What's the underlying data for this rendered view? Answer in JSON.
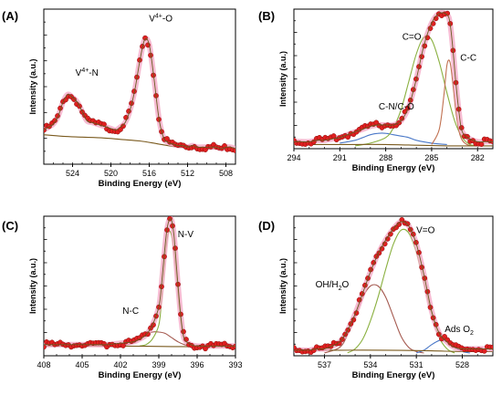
{
  "chart_data": [
    {
      "type": "line",
      "panel_label": "(A)",
      "xlabel": "Binding Energy (eV)",
      "ylabel": "Intensity (a.u.)",
      "xlim": [
        527,
        507
      ],
      "ylim": [
        0,
        1
      ],
      "xticks": [
        524,
        520,
        516,
        512,
        508
      ],
      "annotations": [
        {
          "base": "V",
          "sup": "4+",
          "rest": "-N",
          "x": 522.5,
          "y": 0.57
        },
        {
          "base": "V",
          "sup": "4+",
          "rest": "-O",
          "x": 514.8,
          "y": 0.92
        }
      ],
      "series": [
        {
          "role": "data",
          "color": "#e02020",
          "x": [
            527,
            526.5,
            526,
            525.5,
            525,
            524.5,
            524,
            523.5,
            523,
            522.5,
            522,
            521.5,
            521,
            520.5,
            520,
            519.5,
            519,
            518.5,
            518,
            517.5,
            517,
            516.5,
            516,
            515.5,
            515,
            514.5,
            514,
            513.5,
            513,
            512.5,
            512,
            511.5,
            511,
            510.5,
            510,
            509.5,
            509,
            508.5,
            508,
            507.5,
            507
          ],
          "y": [
            0.22,
            0.24,
            0.26,
            0.31,
            0.4,
            0.45,
            0.43,
            0.4,
            0.34,
            0.28,
            0.27,
            0.26,
            0.25,
            0.24,
            0.23,
            0.22,
            0.24,
            0.27,
            0.35,
            0.48,
            0.66,
            0.8,
            0.77,
            0.55,
            0.3,
            0.17,
            0.14,
            0.13,
            0.12,
            0.12,
            0.11,
            0.12,
            0.11,
            0.11,
            0.11,
            0.11,
            0.11,
            0.1,
            0.11,
            0.11,
            0.1
          ]
        },
        {
          "role": "background",
          "color": "#7a5a1e",
          "x": [
            527,
            525,
            523,
            521,
            519,
            517,
            515,
            513,
            511,
            509,
            507
          ],
          "y": [
            0.19,
            0.18,
            0.175,
            0.17,
            0.16,
            0.15,
            0.13,
            0.11,
            0.105,
            0.1,
            0.1
          ]
        }
      ]
    },
    {
      "type": "line",
      "panel_label": "(B)",
      "xlabel": "Binding Energy (eV)",
      "ylabel": "Intensity (a.u.)",
      "xlim": [
        294,
        281
      ],
      "ylim": [
        0,
        1
      ],
      "xticks": [
        294,
        291,
        288,
        285,
        282
      ],
      "annotations": [
        {
          "base": "C-N/C-O",
          "x": 287.3,
          "y": 0.28
        },
        {
          "base": "C=O",
          "x": 286.3,
          "y": 0.78
        },
        {
          "base": "C-C",
          "x": 282.6,
          "y": 0.63
        }
      ],
      "series": [
        {
          "role": "data",
          "color": "#e02020",
          "x": [
            294,
            293.5,
            293,
            292.5,
            292,
            291.5,
            291,
            290.5,
            290,
            289.5,
            289,
            288.5,
            288,
            287.5,
            287,
            286.5,
            286,
            285.5,
            285,
            284.5,
            284,
            283.8,
            283.6,
            283.4,
            283.2,
            283,
            282.5,
            282,
            281.5,
            281
          ],
          "y": [
            0.05,
            0.05,
            0.05,
            0.06,
            0.06,
            0.07,
            0.08,
            0.1,
            0.12,
            0.14,
            0.16,
            0.17,
            0.17,
            0.17,
            0.2,
            0.3,
            0.5,
            0.74,
            0.9,
            0.97,
            0.96,
            0.9,
            0.7,
            0.45,
            0.25,
            0.12,
            0.07,
            0.05,
            0.05,
            0.05
          ]
        },
        {
          "role": "component",
          "name": "C-N/C-O",
          "color": "#4a78c8",
          "x": [
            291,
            290,
            289.5,
            289,
            288.5,
            288,
            287.5,
            287,
            286.5,
            286,
            285,
            284
          ],
          "y": [
            0.04,
            0.06,
            0.08,
            0.1,
            0.11,
            0.11,
            0.1,
            0.09,
            0.08,
            0.06,
            0.04,
            0.03
          ]
        },
        {
          "role": "component",
          "name": "C=O",
          "color": "#8ab040",
          "x": [
            290,
            289,
            288,
            287.5,
            287,
            286.5,
            286,
            285.5,
            285,
            284.5,
            284,
            283.5,
            283,
            282.5,
            282
          ],
          "y": [
            0.02,
            0.04,
            0.08,
            0.15,
            0.28,
            0.48,
            0.68,
            0.8,
            0.78,
            0.62,
            0.4,
            0.2,
            0.08,
            0.03,
            0.02
          ]
        },
        {
          "role": "component",
          "name": "C-C",
          "color": "#c07050",
          "x": [
            285,
            284.5,
            284.2,
            284,
            283.8,
            283.6,
            283.4,
            283.2,
            283,
            282.7,
            282.4
          ],
          "y": [
            0.03,
            0.14,
            0.38,
            0.6,
            0.62,
            0.45,
            0.25,
            0.12,
            0.06,
            0.03,
            0.02
          ]
        },
        {
          "role": "background",
          "color": "#7a5a1e",
          "x": [
            294,
            292,
            290,
            288,
            286,
            284,
            283,
            281
          ],
          "y": [
            0.03,
            0.03,
            0.03,
            0.03,
            0.025,
            0.02,
            0.02,
            0.02
          ]
        }
      ]
    },
    {
      "type": "line",
      "panel_label": "(C)",
      "xlabel": "Binding Energy (eV)",
      "ylabel": "Intensity (a.u.)",
      "xlim": [
        408,
        393
      ],
      "ylim": [
        0,
        1
      ],
      "xticks": [
        408,
        405,
        402,
        399,
        396,
        393
      ],
      "annotations": [
        {
          "base": "N-V",
          "x": 396.9,
          "y": 0.85
        },
        {
          "base": "N-C",
          "x": 401.2,
          "y": 0.3
        }
      ],
      "series": [
        {
          "role": "data",
          "color": "#e02020",
          "x": [
            408,
            407,
            406,
            405,
            404,
            403,
            402,
            401,
            400.5,
            400,
            399.5,
            399,
            398.8,
            398.6,
            398.4,
            398.2,
            398,
            397.8,
            397.6,
            397.4,
            397.2,
            397,
            396.5,
            396,
            395,
            394,
            393
          ],
          "y": [
            0.08,
            0.08,
            0.08,
            0.08,
            0.08,
            0.08,
            0.09,
            0.1,
            0.12,
            0.15,
            0.22,
            0.35,
            0.5,
            0.7,
            0.88,
            0.97,
            0.97,
            0.85,
            0.62,
            0.4,
            0.22,
            0.12,
            0.08,
            0.07,
            0.07,
            0.07,
            0.07
          ]
        },
        {
          "role": "component",
          "name": "N-C",
          "color": "#a55a50",
          "x": [
            402,
            401,
            400.5,
            400,
            399.5,
            399,
            398.5,
            398,
            397.5,
            397,
            396.5
          ],
          "y": [
            0.07,
            0.09,
            0.12,
            0.15,
            0.17,
            0.17,
            0.16,
            0.13,
            0.1,
            0.08,
            0.07
          ]
        },
        {
          "role": "component",
          "name": "N-V",
          "color": "#8ab040",
          "x": [
            400.5,
            400,
            399.5,
            399,
            398.8,
            398.6,
            398.4,
            398.2,
            398,
            397.8,
            397.6,
            397.4,
            397.2,
            397,
            396.5
          ],
          "y": [
            0.07,
            0.08,
            0.12,
            0.22,
            0.38,
            0.6,
            0.8,
            0.89,
            0.86,
            0.74,
            0.55,
            0.35,
            0.2,
            0.12,
            0.07
          ]
        },
        {
          "role": "background",
          "color": "#7a5a1e",
          "x": [
            408,
            404,
            400,
            398,
            396,
            393
          ],
          "y": [
            0.07,
            0.07,
            0.068,
            0.066,
            0.065,
            0.065
          ]
        }
      ]
    },
    {
      "type": "line",
      "panel_label": "(D)",
      "xlabel": "Binding Energy (eV)",
      "ylabel": "Intensity (a.u.)",
      "xlim": [
        539,
        526
      ],
      "ylim": [
        0,
        1
      ],
      "xticks": [
        537,
        534,
        531,
        528
      ],
      "annotations": [
        {
          "base": "V=O",
          "x": 530.4,
          "y": 0.88
        },
        {
          "base": "OH/H",
          "sub": "2",
          "rest": "O",
          "x": 536.5,
          "y": 0.49
        },
        {
          "base": "Ads O",
          "sub": "2",
          "x": 528.2,
          "y": 0.17
        }
      ],
      "series": [
        {
          "role": "data",
          "color": "#e02020",
          "x": [
            539,
            538.5,
            538,
            537.5,
            537,
            536.5,
            536,
            535.5,
            535,
            534.5,
            534,
            533.5,
            533,
            532.5,
            532,
            531.5,
            531,
            530.5,
            530,
            529.5,
            529,
            528.5,
            528,
            527.5,
            527,
            526.5,
            526
          ],
          "y": [
            0.04,
            0.04,
            0.04,
            0.05,
            0.05,
            0.07,
            0.1,
            0.18,
            0.3,
            0.45,
            0.6,
            0.73,
            0.83,
            0.91,
            0.96,
            0.93,
            0.8,
            0.58,
            0.32,
            0.16,
            0.1,
            0.06,
            0.05,
            0.05,
            0.05,
            0.05,
            0.05
          ]
        },
        {
          "role": "component",
          "name": "OH/H2O",
          "color": "#a55a50",
          "x": [
            537,
            536,
            535.5,
            535,
            534.5,
            534,
            533.5,
            533,
            532.5,
            532,
            531.5,
            531,
            530.5
          ],
          "y": [
            0.02,
            0.06,
            0.15,
            0.28,
            0.42,
            0.5,
            0.5,
            0.42,
            0.28,
            0.14,
            0.06,
            0.03,
            0.02
          ]
        },
        {
          "role": "component",
          "name": "V=O",
          "color": "#8ab040",
          "x": [
            535.5,
            535,
            534.5,
            534,
            533.5,
            533,
            532.5,
            532,
            531.5,
            531,
            530.5,
            530,
            529.5,
            529,
            528.5
          ],
          "y": [
            0.02,
            0.05,
            0.12,
            0.25,
            0.42,
            0.62,
            0.8,
            0.9,
            0.88,
            0.74,
            0.52,
            0.3,
            0.13,
            0.05,
            0.02
          ]
        },
        {
          "role": "component",
          "name": "Ads O2",
          "color": "#4a78c8",
          "x": [
            531,
            530.5,
            530,
            529.5,
            529.2,
            529,
            528.5,
            528,
            527.5
          ],
          "y": [
            0.02,
            0.04,
            0.08,
            0.11,
            0.11,
            0.1,
            0.06,
            0.03,
            0.02
          ]
        },
        {
          "role": "background",
          "color": "#7a5a1e",
          "x": [
            539,
            536,
            533,
            530,
            528,
            526
          ],
          "y": [
            0.04,
            0.04,
            0.04,
            0.035,
            0.03,
            0.03
          ]
        }
      ]
    }
  ]
}
